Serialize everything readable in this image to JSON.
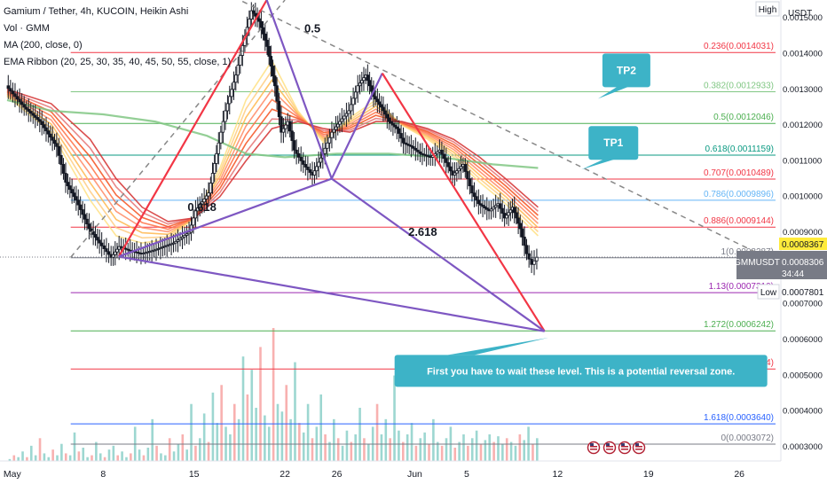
{
  "legend": {
    "symbol_line": "Gamium / Tether, 4h, KUCOIN, Heikin Ashi",
    "vol_line": "Vol · GMM",
    "ma_line": "MA (200, close, 0)",
    "ema_line": "EMA Ribbon (20, 25, 30, 35, 40, 45, 50, 55, close, 1)"
  },
  "price_axis": {
    "currency": "USDT",
    "high_label": "High",
    "low_label": "Low",
    "ticks": [
      {
        "value": 0.0015,
        "label": "0.0015000"
      },
      {
        "value": 0.0014,
        "label": "0.0014000"
      },
      {
        "value": 0.0013,
        "label": "0.0013000"
      },
      {
        "value": 0.0012,
        "label": "0.0012000"
      },
      {
        "value": 0.0011,
        "label": "0.0011000"
      },
      {
        "value": 0.001,
        "label": "0.0010000"
      },
      {
        "value": 0.0009,
        "label": "0.0009000"
      },
      {
        "value": 0.0007,
        "label": "0.0007000"
      },
      {
        "value": 0.0006,
        "label": "0.0006000"
      },
      {
        "value": 0.0005,
        "label": "0.0005000"
      },
      {
        "value": 0.0004,
        "label": "0.0004000"
      },
      {
        "value": 0.0003,
        "label": "0.0003000"
      }
    ],
    "high_price_label": "0.0008367",
    "last_price": {
      "symbol": "GMMUSDT",
      "price": "0.0008306",
      "countdown": "34:44"
    },
    "low_price_label": "0.0007801",
    "colors": {
      "high_tag": "#ffeb3b",
      "last_tag": "#787b86"
    }
  },
  "time_axis": {
    "ticks": [
      {
        "day": 1,
        "label": "May"
      },
      {
        "day": 8,
        "label": "8"
      },
      {
        "day": 15,
        "label": "15"
      },
      {
        "day": 22,
        "label": "22"
      },
      {
        "day": 26,
        "label": "26"
      },
      {
        "day": 32,
        "label": "Jun"
      },
      {
        "day": 36,
        "label": "5"
      },
      {
        "day": 43,
        "label": "12"
      },
      {
        "day": 50,
        "label": "19"
      },
      {
        "day": 57,
        "label": "26"
      }
    ]
  },
  "chart_data": {
    "type": "line",
    "title": "Gamium / Tether, 4h, KUCOIN, Heikin Ashi",
    "xlabel": "",
    "ylabel": "USDT",
    "ylim": [
      0.00026,
      0.00155
    ],
    "xlim": [
      0.6,
      60.2
    ],
    "grid": false,
    "price_series": {
      "name": "GMMUSDT",
      "x": [
        0.6,
        2.0,
        3.2,
        4.5,
        5.2,
        6.0,
        7.0,
        7.8,
        8.7,
        9.3,
        10.0,
        11.0,
        12.0,
        13.5,
        14.7,
        15.2,
        16.2,
        16.8,
        17.5,
        18.3,
        19.0,
        19.5,
        20.1,
        20.7,
        21.3,
        21.8,
        22.3,
        22.8,
        23.5,
        24.2,
        25.0,
        25.7,
        26.3,
        27.0,
        27.7,
        28.3,
        28.9,
        29.5,
        30.1,
        30.7,
        31.2,
        31.8,
        32.5,
        33.3,
        34.0,
        35.0,
        35.8,
        36.5,
        37.0,
        37.8,
        38.5,
        39.0,
        39.6,
        40.2,
        40.7,
        41.1,
        41.5
      ],
      "values": [
        0.00131,
        0.00125,
        0.00121,
        0.00114,
        0.00104,
        0.00099,
        0.00091,
        0.00087,
        0.00083,
        0.00086,
        0.00085,
        0.00084,
        0.00085,
        0.00087,
        0.0009,
        0.00096,
        0.00101,
        0.00112,
        0.00124,
        0.00134,
        0.00145,
        0.00152,
        0.00149,
        0.00142,
        0.00131,
        0.00118,
        0.00121,
        0.00113,
        0.00109,
        0.00106,
        0.00112,
        0.00118,
        0.00121,
        0.00124,
        0.00131,
        0.00134,
        0.00128,
        0.00125,
        0.00121,
        0.00119,
        0.00115,
        0.00114,
        0.00112,
        0.00111,
        0.00113,
        0.00106,
        0.00109,
        0.00101,
        0.00098,
        0.00096,
        0.00098,
        0.00094,
        0.00097,
        0.00091,
        0.00084,
        0.00081,
        0.00083
      ]
    },
    "ma_series": {
      "name": "MA (200, close, 0)",
      "x": [
        0.6,
        4.0,
        8.0,
        12.0,
        16.0,
        19.0,
        22.0,
        26.0,
        30.0,
        34.0,
        38.0,
        41.5
      ],
      "values": [
        0.00127,
        0.00124,
        0.00123,
        0.00121,
        0.00117,
        0.00112,
        0.00111,
        0.00112,
        0.00112,
        0.00111,
        0.00109,
        0.00108
      ]
    },
    "ema_ribbon_bounds": {
      "x": [
        0.6,
        4.0,
        7.0,
        9.0,
        11.0,
        13.0,
        15.0,
        17.0,
        19.0,
        21.0,
        23.0,
        25.0,
        27.0,
        29.0,
        31.0,
        33.0,
        35.0,
        37.0,
        39.0,
        41.5
      ],
      "fast": [
        0.00128,
        0.00118,
        0.00099,
        0.00089,
        0.00087,
        0.00088,
        0.00094,
        0.00108,
        0.00127,
        0.00138,
        0.00124,
        0.00115,
        0.00122,
        0.00127,
        0.0012,
        0.00116,
        0.00111,
        0.00104,
        0.00098,
        0.00089
      ],
      "slow": [
        0.0013,
        0.00126,
        0.00116,
        0.00105,
        0.00097,
        0.00093,
        0.00094,
        0.001,
        0.0011,
        0.00119,
        0.00121,
        0.00119,
        0.00118,
        0.00121,
        0.00121,
        0.00119,
        0.00116,
        0.00111,
        0.00105,
        0.00097
      ]
    },
    "volume": {
      "day_start": 0.8,
      "day_step": 0.333,
      "values": [
        1,
        3,
        2,
        5,
        2,
        8,
        3,
        12,
        4,
        2,
        6,
        3,
        9,
        4,
        3,
        15,
        5,
        7,
        2,
        3,
        10,
        4,
        2,
        6,
        8,
        3,
        5,
        2,
        4,
        18,
        6,
        3,
        7,
        22,
        8,
        4,
        3,
        12,
        5,
        9,
        14,
        6,
        30,
        8,
        12,
        25,
        10,
        36,
        20,
        40,
        18,
        14,
        30,
        22,
        55,
        35,
        48,
        28,
        60,
        24,
        18,
        70,
        30,
        26,
        40,
        22,
        52,
        20,
        15,
        30,
        12,
        18,
        35,
        14,
        10,
        22,
        12,
        8,
        16,
        10,
        14,
        28,
        12,
        9,
        18,
        30,
        14,
        22,
        12,
        45,
        16,
        10,
        14,
        20,
        8,
        12,
        15,
        9,
        22,
        10,
        8,
        12,
        18,
        7,
        10,
        14,
        8,
        12,
        16,
        9,
        11,
        14,
        10,
        13,
        9,
        12,
        10,
        8,
        14,
        11,
        18,
        9,
        12,
        25,
        10,
        8
      ],
      "colors": {
        "up": "#26a69a",
        "down": "#ef5350"
      }
    },
    "fib_levels": [
      {
        "ratio": "0.236",
        "price": "0.0014031",
        "color": "#f23645"
      },
      {
        "ratio": "0.382",
        "price": "0.0012933",
        "color": "#81c784"
      },
      {
        "ratio": "0.5",
        "price": "0.0012046",
        "color": "#4caf50"
      },
      {
        "ratio": "0.618",
        "price": "0.0011159",
        "color": "#089981"
      },
      {
        "ratio": "0.707",
        "price": "0.0010489",
        "color": "#f23645"
      },
      {
        "ratio": "0.786",
        "price": "0.0009896",
        "color": "#64b5f6"
      },
      {
        "ratio": "0.886",
        "price": "0.0009144",
        "color": "#f23645"
      },
      {
        "ratio": "1",
        "price": "0.0008287",
        "color": "#787b86"
      },
      {
        "ratio": "1.13",
        "price": "0.0007310",
        "color": "#9c27b0"
      },
      {
        "ratio": "1.272",
        "price": "0.0006242",
        "color": "#4caf50"
      },
      {
        "ratio": "1.414",
        "price": "0.0005174",
        "color": "#f23645"
      },
      {
        "ratio": "1.618",
        "price": "0.0003640",
        "color": "#2962ff"
      },
      {
        "ratio": "0",
        "price": "0.0003072",
        "color": "#787b86"
      }
    ],
    "harmonic_points": [
      {
        "day": 9.2,
        "price": 0.000832
      },
      {
        "day": 20.6,
        "price": 0.00155
      },
      {
        "day": 25.6,
        "price": 0.00105
      },
      {
        "day": 29.5,
        "price": 0.001345
      },
      {
        "day": 42.0,
        "price": 0.000623
      }
    ],
    "pattern_labels": [
      {
        "text": "0.5",
        "day": 23.5,
        "price": 0.00146
      },
      {
        "text": "0.618",
        "day": 14.5,
        "price": 0.00096
      },
      {
        "text": "2.618",
        "day": 31.5,
        "price": 0.00089
      }
    ],
    "dashed_lines": [
      {
        "from": {
          "day": 5.5,
          "price": 0.00083
        },
        "to": {
          "day": 22.0,
          "price": 0.00155
        }
      },
      {
        "from": {
          "day": 14.0,
          "price": 0.00163
        },
        "to": {
          "day": 58.5,
          "price": 0.00084
        }
      }
    ],
    "annotations": [
      {
        "text": "TP2",
        "day": 48.3,
        "price": 0.001353
      },
      {
        "text": "TP1",
        "day": 47.3,
        "price": 0.00115
      },
      {
        "text": "First you have to wait these level. This is a potential reversal zone.",
        "day": 44.8,
        "price": 0.000512
      }
    ],
    "annotation_color": "#3db3c7"
  }
}
